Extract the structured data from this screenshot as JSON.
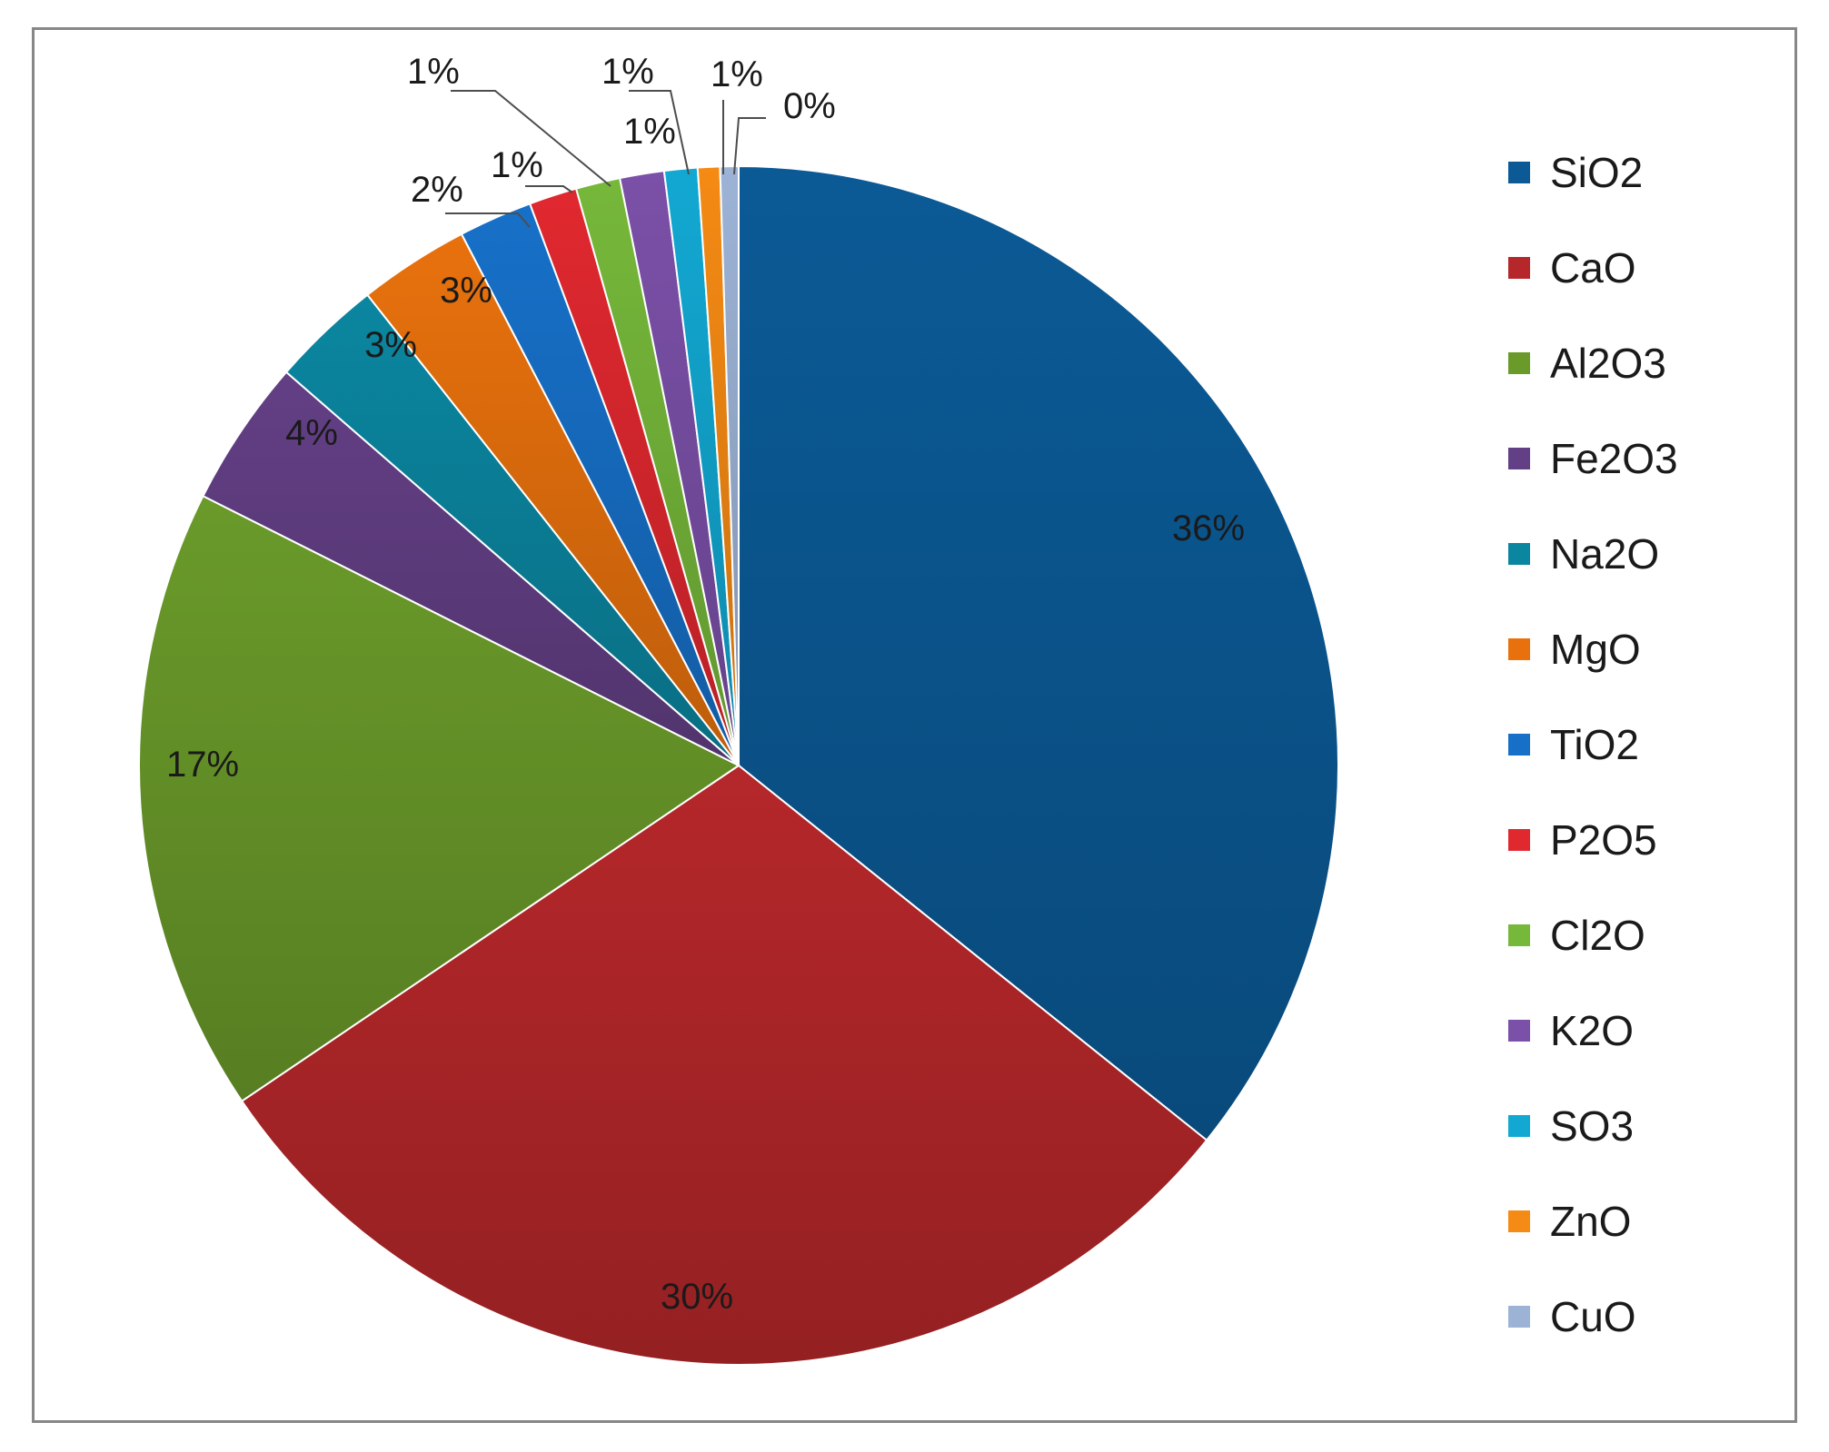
{
  "chart_data": {
    "type": "pie",
    "title": "",
    "categories": [
      "SiO2",
      "CaO",
      "Al2O3",
      "Fe2O3",
      "Na2O",
      "MgO",
      "TiO2",
      "P2O5",
      "Cl2O",
      "K2O",
      "SO3",
      "ZnO",
      "CuO"
    ],
    "values": [
      36,
      30,
      17,
      4,
      3,
      3,
      2,
      1.3,
      1.2,
      1.2,
      0.9,
      0.6,
      0.5
    ],
    "data_labels": [
      "36%",
      "30%",
      "17%",
      "4%",
      "3%",
      "3%",
      "2%",
      "1%",
      "1%",
      "1%",
      "1%",
      "1%",
      "0%"
    ],
    "colors": [
      "#0b5a96",
      "#b5272a",
      "#6a9a2a",
      "#633f85",
      "#0b86a0",
      "#e8710d",
      "#1770c8",
      "#e0282f",
      "#76b83a",
      "#7b50a8",
      "#12a8d2",
      "#f58a14",
      "#9db3d6"
    ],
    "legend": {
      "position": "right"
    },
    "start_angle_deg": 0,
    "direction": "clockwise"
  }
}
